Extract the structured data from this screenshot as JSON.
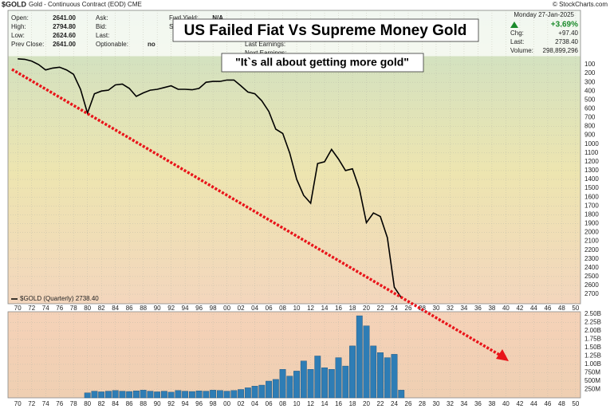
{
  "header": {
    "symbol": "$GOLD",
    "description": "Gold - Continuous Contract (EOD) CME",
    "copyright": "© StockCharts.com",
    "date": "Monday 27-Jan-2025",
    "change_pct": "+3.69%",
    "fields_left": [
      [
        "Open:",
        "2641.00"
      ],
      [
        "High:",
        "2794.80"
      ],
      [
        "Low:",
        "2624.60"
      ],
      [
        "Prev Close:",
        "2641.00"
      ]
    ],
    "fields_mid": [
      [
        "Ask:",
        ""
      ],
      [
        "Bid:",
        ""
      ],
      [
        "Last:",
        ""
      ],
      [
        "Optionable:",
        "no"
      ]
    ],
    "fields_mid2": [
      [
        "Fwd Yield:",
        "N/A"
      ],
      [
        "SCTR:",
        ""
      ]
    ],
    "fields_mid3": [
      "Last Earnings:",
      "Next Earnings:"
    ],
    "fields_right": [
      [
        "Chg:",
        "+97.40"
      ],
      [
        "Last:",
        "2738.40"
      ],
      [
        "Volume:",
        "298,899,296"
      ]
    ]
  },
  "chart_data": [
    {
      "type": "line",
      "title": "US Failed Fiat Vs Supreme Money Gold",
      "subtitle": "\"It`s all about getting more gold\"",
      "x": [
        1970,
        1971,
        1972,
        1973,
        1974,
        1975,
        1976,
        1977,
        1978,
        1979,
        1980,
        1981,
        1982,
        1983,
        1984,
        1985,
        1986,
        1987,
        1988,
        1989,
        1990,
        1991,
        1992,
        1993,
        1994,
        1995,
        1996,
        1997,
        1998,
        1999,
        2000,
        2001,
        2002,
        2003,
        2004,
        2005,
        2006,
        2007,
        2008,
        2009,
        2010,
        2011,
        2012,
        2013,
        2014,
        2015,
        2016,
        2017,
        2018,
        2019,
        2020,
        2021,
        2022,
        2023,
        2024,
        2025
      ],
      "series": [
        {
          "name": "$GOLD (Quarterly) 2738.40",
          "color": "#000000",
          "values": [
            35,
            40,
            60,
            100,
            160,
            140,
            130,
            160,
            210,
            380,
            650,
            430,
            400,
            390,
            330,
            320,
            370,
            460,
            420,
            390,
            380,
            360,
            340,
            380,
            380,
            385,
            370,
            300,
            290,
            290,
            275,
            275,
            340,
            410,
            430,
            510,
            630,
            830,
            880,
            1100,
            1400,
            1580,
            1670,
            1220,
            1200,
            1060,
            1170,
            1300,
            1280,
            1510,
            1890,
            1780,
            1820,
            2060,
            2620,
            2738.4
          ]
        }
      ],
      "xlim": [
        1968.6,
        2050.7
      ],
      "xticks": [
        {
          "value": 1970,
          "label": "70"
        },
        {
          "value": 1972,
          "label": "72"
        },
        {
          "value": 1974,
          "label": "74"
        },
        {
          "value": 1976,
          "label": "76"
        },
        {
          "value": 1978,
          "label": "78"
        },
        {
          "value": 1980,
          "label": "80"
        },
        {
          "value": 1982,
          "label": "82"
        },
        {
          "value": 1984,
          "label": "84"
        },
        {
          "value": 1986,
          "label": "86"
        },
        {
          "value": 1988,
          "label": "88"
        },
        {
          "value": 1990,
          "label": "90"
        },
        {
          "value": 1992,
          "label": "92"
        },
        {
          "value": 1994,
          "label": "94"
        },
        {
          "value": 1996,
          "label": "96"
        },
        {
          "value": 1998,
          "label": "98"
        },
        {
          "value": 2000,
          "label": "00"
        },
        {
          "value": 2002,
          "label": "02"
        },
        {
          "value": 2004,
          "label": "04"
        },
        {
          "value": 2006,
          "label": "06"
        },
        {
          "value": 2008,
          "label": "08"
        },
        {
          "value": 2010,
          "label": "10"
        },
        {
          "value": 2012,
          "label": "12"
        },
        {
          "value": 2014,
          "label": "14"
        },
        {
          "value": 2016,
          "label": "16"
        },
        {
          "value": 2018,
          "label": "18"
        },
        {
          "value": 2020,
          "label": "20"
        },
        {
          "value": 2022,
          "label": "22"
        },
        {
          "value": 2024,
          "label": "24"
        },
        {
          "value": 2026,
          "label": "26"
        },
        {
          "value": 2028,
          "label": "28"
        },
        {
          "value": 2030,
          "label": "30"
        },
        {
          "value": 2032,
          "label": "32"
        },
        {
          "value": 2034,
          "label": "34"
        },
        {
          "value": 2036,
          "label": "36"
        },
        {
          "value": 2038,
          "label": "38"
        },
        {
          "value": 2040,
          "label": "40"
        },
        {
          "value": 2042,
          "label": "42"
        },
        {
          "value": 2044,
          "label": "44"
        },
        {
          "value": 2046,
          "label": "46"
        },
        {
          "value": 2048,
          "label": "48"
        },
        {
          "value": 2050,
          "label": "50"
        }
      ],
      "ylim": [
        -514,
        2808
      ],
      "y_inverted": true,
      "yticks": [
        100,
        200,
        300,
        400,
        500,
        600,
        700,
        800,
        900,
        1000,
        1100,
        1200,
        1300,
        1400,
        1500,
        1600,
        1700,
        1800,
        1900,
        2000,
        2100,
        2200,
        2300,
        2400,
        2500,
        2600,
        2700
      ],
      "grid": true
    },
    {
      "type": "bar",
      "color": "#2e7db5",
      "x": [
        1980,
        1981,
        1982,
        1983,
        1984,
        1985,
        1986,
        1987,
        1988,
        1989,
        1990,
        1991,
        1992,
        1993,
        1994,
        1995,
        1996,
        1997,
        1998,
        1999,
        2000,
        2001,
        2002,
        2003,
        2004,
        2005,
        2006,
        2007,
        2008,
        2009,
        2010,
        2011,
        2012,
        2013,
        2014,
        2015,
        2016,
        2017,
        2018,
        2019,
        2020,
        2021,
        2022,
        2023,
        2024,
        2025
      ],
      "values": [
        150000000,
        200000000,
        180000000,
        200000000,
        220000000,
        200000000,
        190000000,
        210000000,
        230000000,
        200000000,
        180000000,
        200000000,
        170000000,
        220000000,
        200000000,
        190000000,
        210000000,
        200000000,
        230000000,
        220000000,
        200000000,
        220000000,
        250000000,
        300000000,
        350000000,
        380000000,
        500000000,
        550000000,
        850000000,
        650000000,
        800000000,
        1100000000,
        850000000,
        1250000000,
        900000000,
        850000000,
        1200000000,
        950000000,
        1550000000,
        2450000000,
        2150000000,
        1550000000,
        1350000000,
        1200000000,
        1300000000,
        230000000
      ],
      "xlim": [
        1968.6,
        2050.7
      ],
      "xticks": [
        {
          "value": 1970,
          "label": "70"
        },
        {
          "value": 1972,
          "label": "72"
        },
        {
          "value": 1974,
          "label": "74"
        },
        {
          "value": 1976,
          "label": "76"
        },
        {
          "value": 1978,
          "label": "78"
        },
        {
          "value": 1980,
          "label": "80"
        },
        {
          "value": 1982,
          "label": "82"
        },
        {
          "value": 1984,
          "label": "84"
        },
        {
          "value": 1986,
          "label": "86"
        },
        {
          "value": 1988,
          "label": "88"
        },
        {
          "value": 1990,
          "label": "90"
        },
        {
          "value": 1992,
          "label": "92"
        },
        {
          "value": 1994,
          "label": "94"
        },
        {
          "value": 1996,
          "label": "96"
        },
        {
          "value": 1998,
          "label": "98"
        },
        {
          "value": 2000,
          "label": "00"
        },
        {
          "value": 2002,
          "label": "02"
        },
        {
          "value": 2004,
          "label": "04"
        },
        {
          "value": 2006,
          "label": "06"
        },
        {
          "value": 2008,
          "label": "08"
        },
        {
          "value": 2010,
          "label": "10"
        },
        {
          "value": 2012,
          "label": "12"
        },
        {
          "value": 2014,
          "label": "14"
        },
        {
          "value": 2016,
          "label": "16"
        },
        {
          "value": 2018,
          "label": "18"
        },
        {
          "value": 2020,
          "label": "20"
        },
        {
          "value": 2022,
          "label": "22"
        },
        {
          "value": 2024,
          "label": "24"
        },
        {
          "value": 2026,
          "label": "26"
        },
        {
          "value": 2028,
          "label": "28"
        },
        {
          "value": 2030,
          "label": "30"
        },
        {
          "value": 2032,
          "label": "32"
        },
        {
          "value": 2034,
          "label": "34"
        },
        {
          "value": 2036,
          "label": "36"
        },
        {
          "value": 2038,
          "label": "38"
        },
        {
          "value": 2040,
          "label": "40"
        },
        {
          "value": 2042,
          "label": "42"
        },
        {
          "value": 2044,
          "label": "44"
        },
        {
          "value": 2046,
          "label": "46"
        },
        {
          "value": 2048,
          "label": "48"
        },
        {
          "value": 2050,
          "label": "50"
        }
      ],
      "ylim": [
        0,
        2570000000
      ],
      "yticks": [
        {
          "value": 250000000,
          "label": "250M"
        },
        {
          "value": 500000000,
          "label": "500M"
        },
        {
          "value": 750000000,
          "label": "750M"
        },
        {
          "value": 1000000000,
          "label": "1.00B"
        },
        {
          "value": 1250000000,
          "label": "1.25B"
        },
        {
          "value": 1500000000,
          "label": "1.50B"
        },
        {
          "value": 1750000000,
          "label": "1.75B"
        },
        {
          "value": 2000000000,
          "label": "2.00B"
        },
        {
          "value": 2250000000,
          "label": "2.25B"
        },
        {
          "value": 2500000000,
          "label": "2.50B"
        }
      ],
      "grid": true
    }
  ]
}
